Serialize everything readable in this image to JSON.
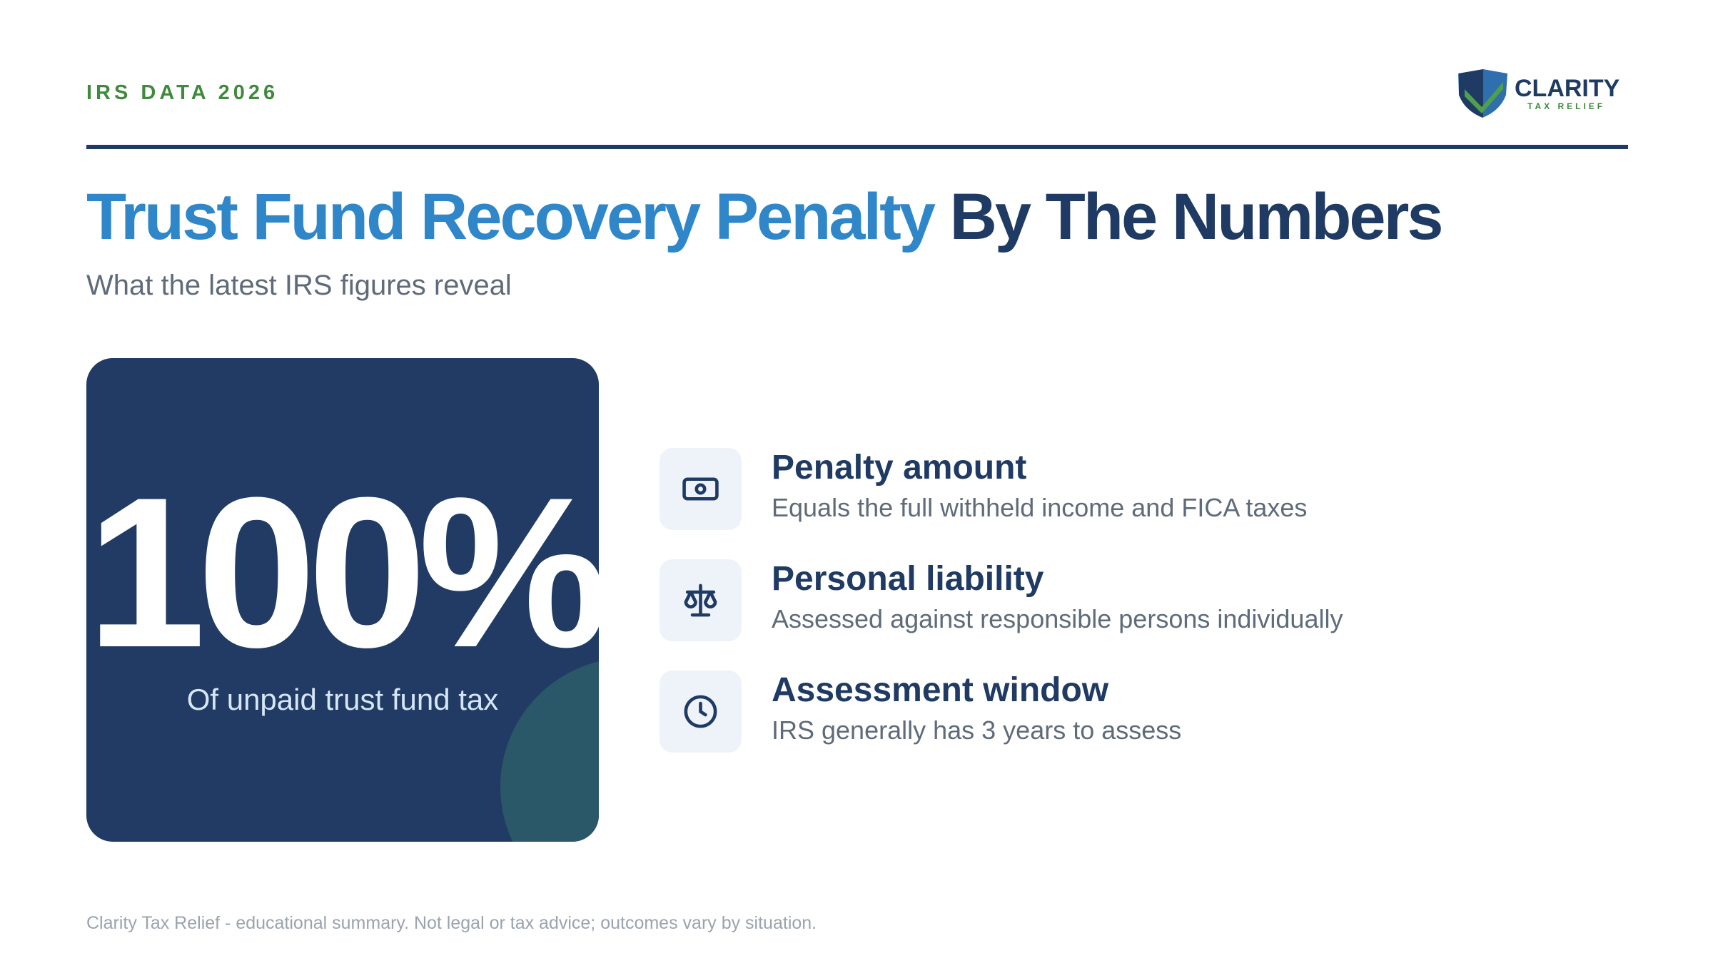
{
  "header": {
    "eyebrow": "IRS DATA 2026",
    "logo_name": "CLARITY",
    "logo_tagline": "TAX RELIEF"
  },
  "title": {
    "highlight": "Trust Fund Recovery Penalty",
    "rest": "By The Numbers"
  },
  "subtitle": "What the latest IRS figures reveal",
  "stat": {
    "value": "100%",
    "caption": "Of unpaid trust fund tax"
  },
  "items": [
    {
      "title": "Penalty amount",
      "description": "Equals the full withheld income and FICA taxes"
    },
    {
      "title": "Personal liability",
      "description": "Assessed against responsible persons individually"
    },
    {
      "title": "Assessment window",
      "description": "IRS generally has 3 years to assess"
    }
  ],
  "footer": "Clarity Tax Relief - educational summary. Not legal or tax advice; outcomes vary by situation."
}
